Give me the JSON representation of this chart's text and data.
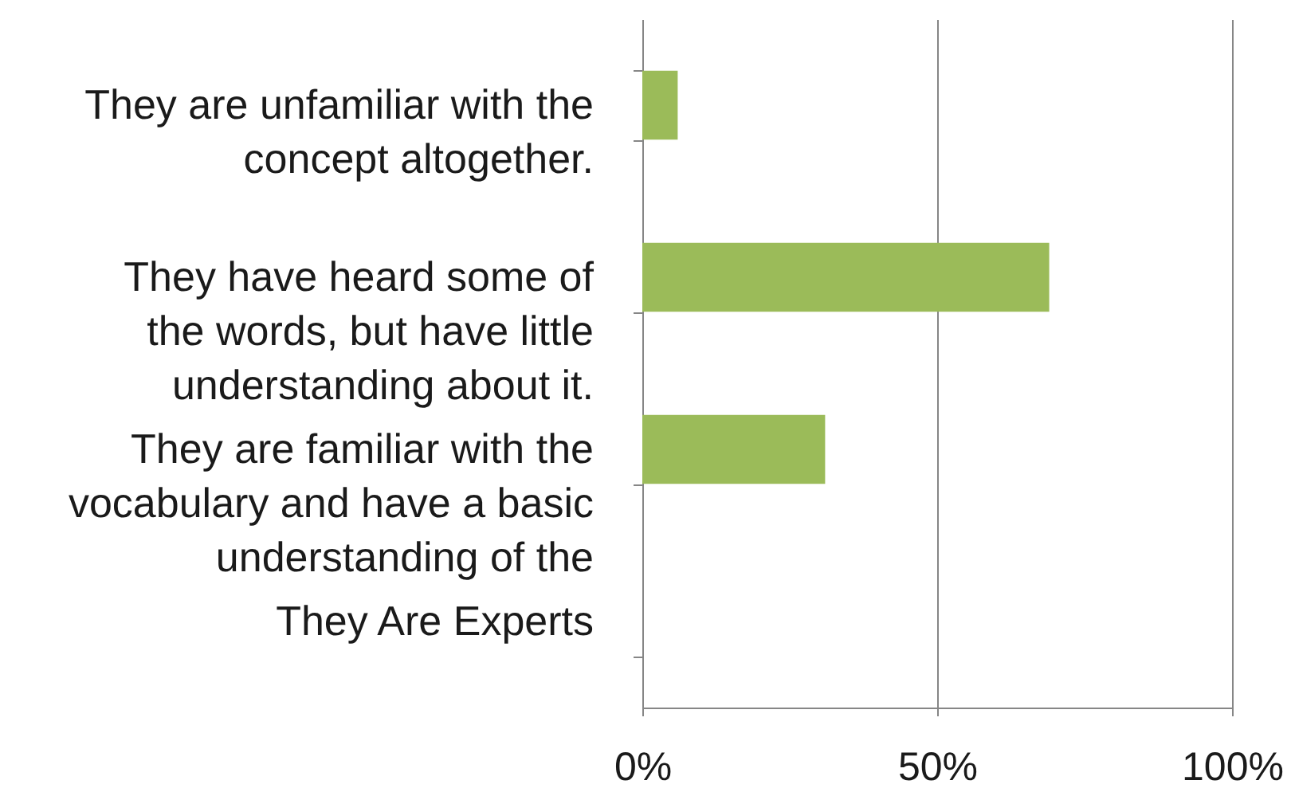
{
  "chart_data": {
    "type": "bar",
    "orientation": "horizontal",
    "categories": [
      "They are unfamiliar with the concept altogether.",
      "They have heard some of the words, but have little understanding about it.",
      "They are familiar with the vocabulary and have a basic understanding of the",
      "They Are Experts"
    ],
    "values": [
      6,
      69,
      31,
      0
    ],
    "color": "#9bbb59",
    "xlim": [
      0,
      100
    ],
    "xticks": [
      {
        "value": 0,
        "label": "0%"
      },
      {
        "value": 50,
        "label": "50%"
      },
      {
        "value": 100,
        "label": "100%"
      }
    ],
    "grid": "x"
  }
}
